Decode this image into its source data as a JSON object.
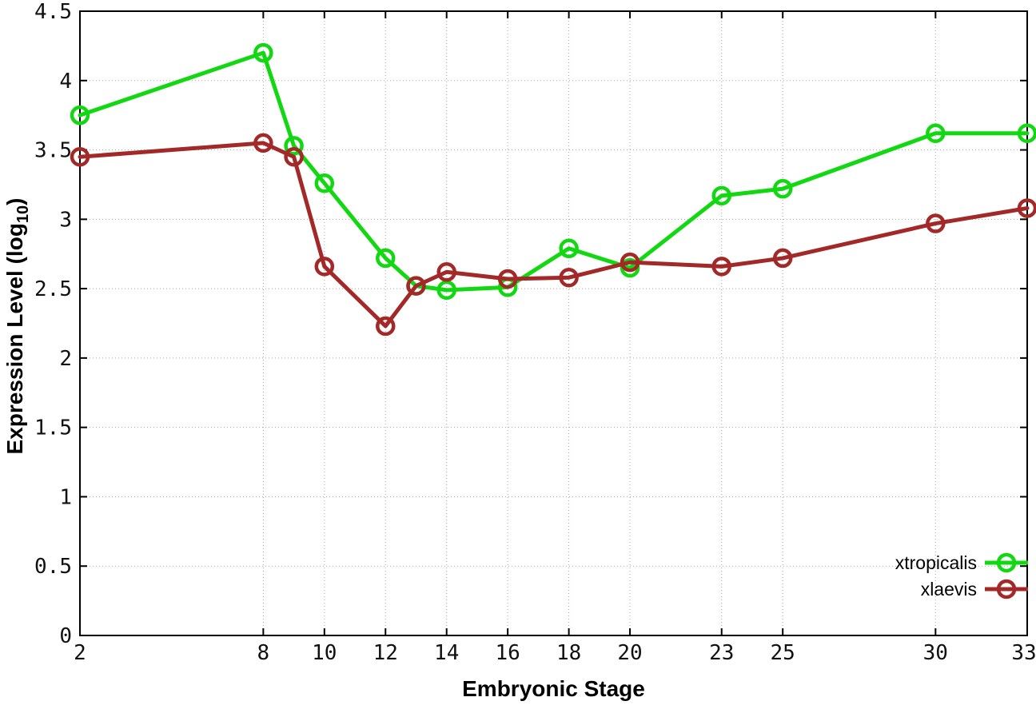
{
  "page": {
    "background": "#ffffff"
  },
  "chart_data": {
    "type": "line",
    "title": "",
    "xlabel": "Embryonic Stage",
    "ylabel": "Expression Level (log10)",
    "ylabel_parts": {
      "main": "Expression Level (log",
      "sub": "10",
      "suffix": ")"
    },
    "xlim": [
      2,
      33
    ],
    "ylim": [
      0,
      4.5
    ],
    "x_ticks": [
      2,
      8,
      10,
      12,
      14,
      16,
      18,
      20,
      23,
      25,
      30,
      33
    ],
    "x_tick_labels": [
      "2",
      "8",
      "10",
      "12",
      "14",
      "16",
      "18",
      "20",
      "23",
      "25",
      "30",
      "33"
    ],
    "y_ticks": [
      0,
      0.5,
      1,
      1.5,
      2,
      2.5,
      3,
      3.5,
      4,
      4.5
    ],
    "y_tick_labels": [
      "0",
      "0.5",
      "1",
      "1.5",
      "2",
      "2.5",
      "3",
      "3.5",
      "4",
      "4.5"
    ],
    "grid": true,
    "grid_color": "#a8a8a8",
    "axis_color": "#000000",
    "legend_position": "inside-bottom-right",
    "x": [
      2,
      8,
      9,
      10,
      12,
      13,
      14,
      16,
      18,
      20,
      23,
      25,
      30,
      33
    ],
    "series": [
      {
        "name": "xtropicalis",
        "color": "#12d812",
        "values": [
          3.75,
          4.2,
          3.53,
          3.26,
          2.72,
          2.52,
          2.49,
          2.51,
          2.79,
          2.65,
          3.17,
          3.22,
          3.62,
          3.62
        ]
      },
      {
        "name": "xlaevis",
        "color": "#a32929",
        "values": [
          3.45,
          3.55,
          3.45,
          2.66,
          2.23,
          2.52,
          2.62,
          2.57,
          2.58,
          2.69,
          2.66,
          2.72,
          2.97,
          3.08
        ]
      }
    ]
  }
}
